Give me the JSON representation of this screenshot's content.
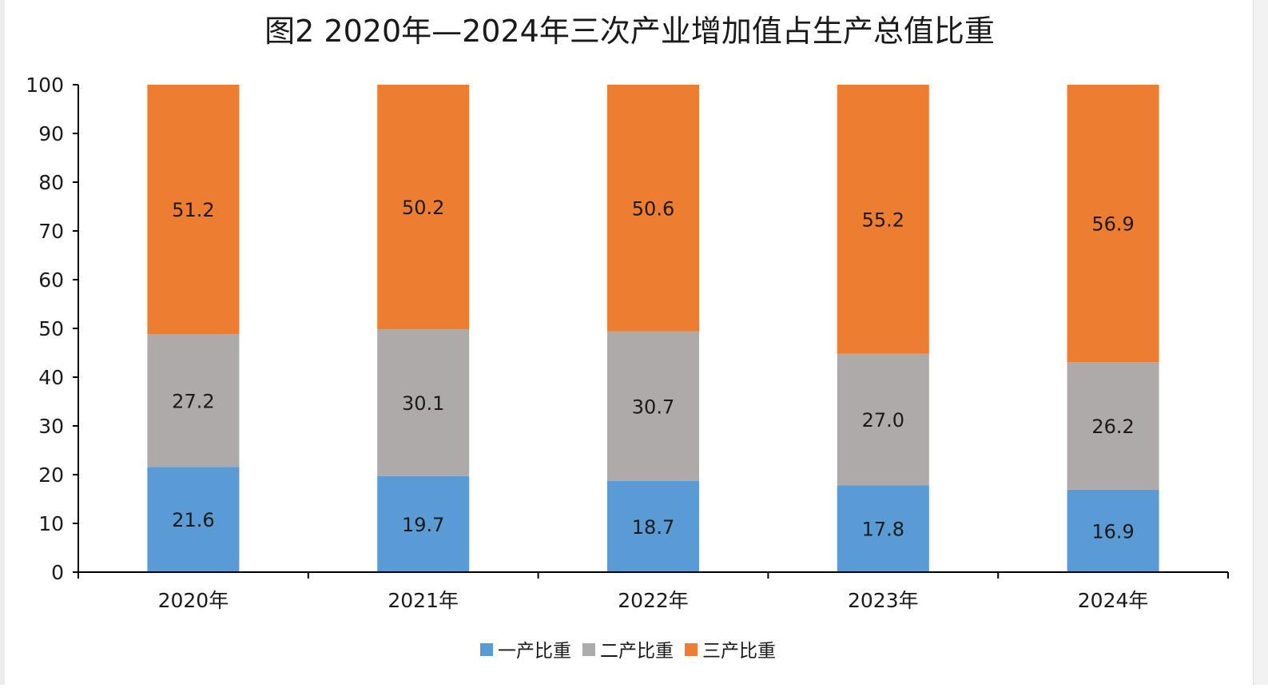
{
  "chart_data": {
    "type": "bar",
    "stacked": true,
    "title": "图2  2020年—2024年三次产业增加值占生产总值比重",
    "xlabel": "",
    "ylabel": "",
    "categories": [
      "2020年",
      "2021年",
      "2022年",
      "2023年",
      "2024年"
    ],
    "ylim": [
      0,
      100
    ],
    "yticks": [
      0,
      10,
      20,
      30,
      40,
      50,
      60,
      70,
      80,
      90,
      100
    ],
    "grid": false,
    "legend": "bottom",
    "series": [
      {
        "name": "一产比重",
        "color": "#5b9bd5",
        "values": [
          21.6,
          19.7,
          18.7,
          17.8,
          16.9
        ],
        "labels": [
          "21.6",
          "19.7",
          "18.7",
          "17.8",
          "16.9"
        ]
      },
      {
        "name": "二产比重",
        "color": "#aeaaaa",
        "values": [
          27.2,
          30.1,
          30.7,
          27.0,
          26.2
        ],
        "labels": [
          "27.2",
          "30.1",
          "30.7",
          "27.0",
          "26.2"
        ]
      },
      {
        "name": "三产比重",
        "color": "#ed7d31",
        "values": [
          51.2,
          50.2,
          50.6,
          55.2,
          56.9
        ],
        "labels": [
          "51.2",
          "50.2",
          "50.6",
          "55.2",
          "56.9"
        ]
      }
    ]
  }
}
